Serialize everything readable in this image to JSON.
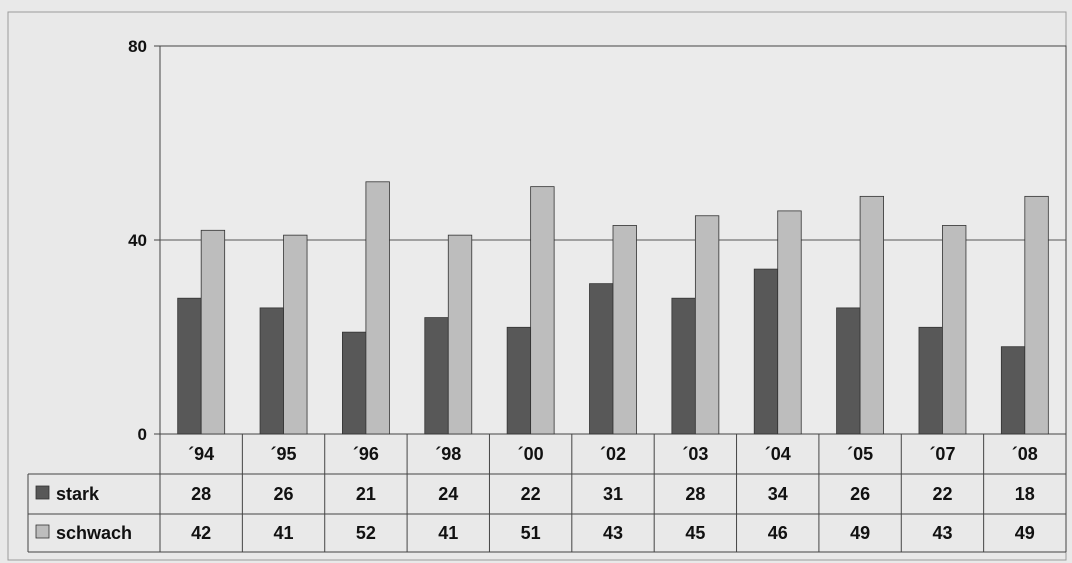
{
  "chart_data": {
    "type": "bar",
    "categories": [
      "´94",
      "´95",
      "´96",
      "´98",
      "´00",
      "´02",
      "´03",
      "´04",
      "´05",
      "´07",
      "´08"
    ],
    "series": [
      {
        "name": "stark",
        "values": [
          28,
          26,
          21,
          24,
          22,
          31,
          28,
          34,
          26,
          22,
          18
        ],
        "color": "#585858"
      },
      {
        "name": "schwach",
        "values": [
          42,
          41,
          52,
          41,
          51,
          43,
          45,
          46,
          49,
          43,
          49
        ],
        "color": "#bdbdbd"
      }
    ],
    "y_ticks": [
      "0",
      "40",
      "80"
    ],
    "ylim": [
      0,
      80
    ],
    "grid": true,
    "legend": "data-table-left"
  }
}
